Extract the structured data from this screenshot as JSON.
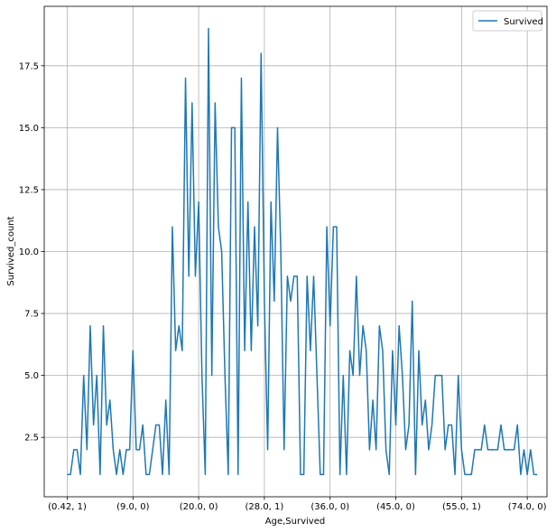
{
  "chart_data": {
    "type": "line",
    "title": "",
    "xlabel": "Age,Survived",
    "ylabel": "Survived_count",
    "grid": true,
    "legend": {
      "position": "upper right",
      "entries": [
        "Survived"
      ]
    },
    "x_tick_labels": [
      "(0.42, 1)",
      "(9.0, 0)",
      "(20.0, 0)",
      "(28.0, 1)",
      "(36.0, 0)",
      "(45.0, 0)",
      "(55.0, 1)",
      "(74.0, 0)"
    ],
    "x_tick_indices": [
      0,
      20,
      40,
      60,
      80,
      100,
      120,
      140
    ],
    "xlim": [
      -7,
      146
    ],
    "y_ticks": [
      2.5,
      5.0,
      7.5,
      10.0,
      12.5,
      15.0,
      17.5
    ],
    "y_tick_labels": [
      "2.5",
      "5.0",
      "7.5",
      "10.0",
      "12.5",
      "15.0",
      "17.5"
    ],
    "ylim": [
      0.1,
      19.9
    ],
    "series": [
      {
        "name": "Survived",
        "color": "#1f77b4",
        "values": [
          1,
          1,
          2,
          2,
          1,
          5,
          2,
          7,
          3,
          5,
          1,
          7,
          3,
          4,
          2,
          1,
          2,
          1,
          2,
          2,
          6,
          2,
          2,
          3,
          1,
          1,
          2,
          3,
          3,
          1,
          4,
          1,
          11,
          6,
          7,
          6,
          17,
          9,
          16,
          9,
          12,
          5,
          1,
          19,
          5,
          16,
          11,
          10,
          5,
          1,
          15,
          15,
          1,
          17,
          6,
          12,
          6,
          11,
          7,
          18,
          8,
          2,
          12,
          8,
          15,
          10,
          2,
          9,
          8,
          9,
          9,
          1,
          1,
          9,
          6,
          9,
          5,
          1,
          1,
          11,
          7,
          11,
          11,
          1,
          5,
          1,
          6,
          5,
          9,
          5,
          7,
          6,
          2,
          4,
          2,
          7,
          6,
          2,
          1,
          6,
          3,
          7,
          5,
          2,
          3,
          8,
          1,
          6,
          3,
          4,
          2,
          3,
          5,
          5,
          5,
          2,
          3,
          3,
          1,
          5,
          2,
          1,
          1,
          1,
          2,
          2,
          2,
          3,
          2,
          2,
          2,
          2,
          3,
          2,
          2,
          2,
          2,
          3,
          1,
          2,
          1,
          2,
          1,
          1
        ]
      }
    ]
  }
}
